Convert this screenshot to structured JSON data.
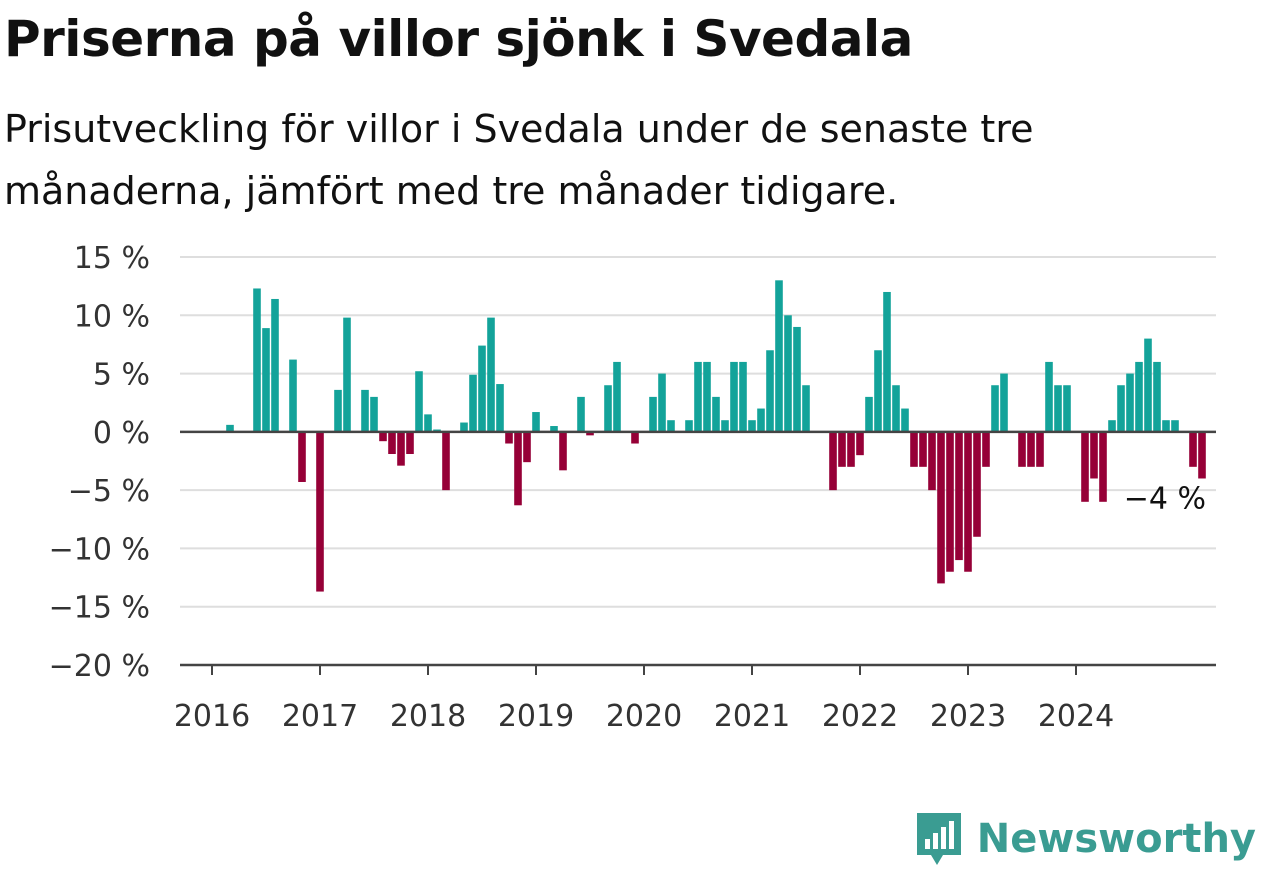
{
  "title": "Priserna på villor sjönk i Svedala",
  "subtitle": "Prisutveckling för villor i Svedala under de senaste tre månaderna, jämfört med tre månader tidigare.",
  "brand": "Newsworthy",
  "colors": {
    "positive": "#13a39a",
    "negative": "#960037",
    "grid": "#dedede",
    "zero": "#444444",
    "brand": "#3a9c92"
  },
  "chart_data": {
    "type": "bar",
    "ylim": [
      -20,
      15
    ],
    "yticks": [
      15,
      10,
      5,
      0,
      -5,
      -10,
      -15,
      -20
    ],
    "ytick_labels": [
      "15 %",
      "10 %",
      "5 %",
      "0 %",
      "−5 %",
      "−10 %",
      "−15 %",
      "−20 %"
    ],
    "xticks": [
      "2016",
      "2017",
      "2018",
      "2019",
      "2020",
      "2021",
      "2022",
      "2023",
      "2024"
    ],
    "x_start": "2016-01",
    "values": [
      0,
      0,
      0.6,
      0,
      0,
      12.3,
      8.9,
      11.4,
      0,
      6.2,
      -4.3,
      0,
      -13.7,
      0,
      3.6,
      9.8,
      0,
      3.6,
      3.0,
      -0.8,
      -1.9,
      -2.9,
      -1.9,
      5.2,
      1.5,
      0.2,
      -5.0,
      0,
      0.8,
      4.9,
      7.4,
      9.8,
      4.1,
      -1.0,
      -6.3,
      -2.6,
      1.7,
      0,
      0.5,
      -3.3,
      0,
      3.0,
      -0.3,
      0,
      4.0,
      6.0,
      0,
      -1.0,
      0,
      3.0,
      5.0,
      1.0,
      0,
      1.0,
      6.0,
      6.0,
      3.0,
      1.0,
      6.0,
      6.0,
      1.0,
      2.0,
      7.0,
      13.0,
      10.0,
      9.0,
      4.0,
      0,
      0,
      -5.0,
      -3.0,
      -3.0,
      -2.0,
      3.0,
      7.0,
      12.0,
      4.0,
      2.0,
      -3.0,
      -3.0,
      -5.0,
      -13.0,
      -12.0,
      -11.0,
      -12.0,
      -9.0,
      -3.0,
      4.0,
      5.0,
      0,
      -3.0,
      -3.0,
      -3.0,
      6.0,
      4.0,
      4.0,
      0,
      -6.0,
      -4.0,
      -6.0,
      1.0,
      4.0,
      5.0,
      6.0,
      8.0,
      6.0,
      1.0,
      1.0,
      0,
      -3.0,
      -4.0
    ],
    "annotation": {
      "label": "−4 %",
      "index": 110
    },
    "grid": true,
    "legend": "none"
  }
}
